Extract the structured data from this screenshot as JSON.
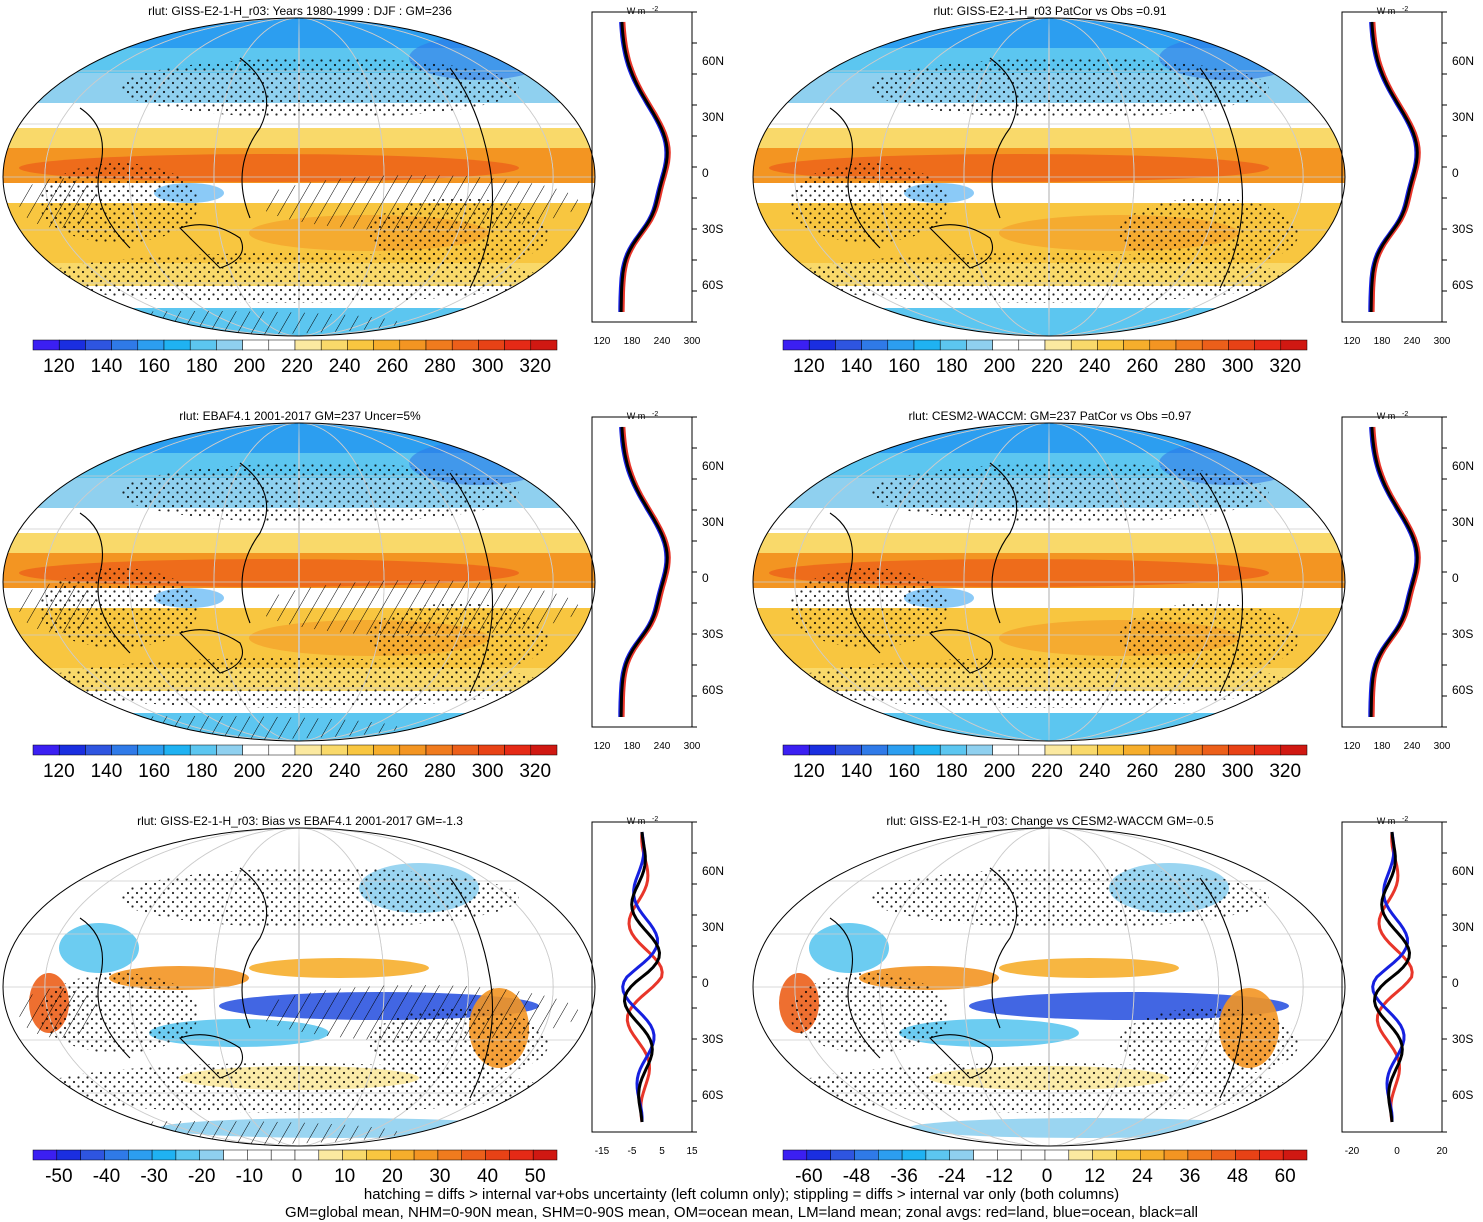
{
  "panels": [
    {
      "id": "p1",
      "title": "rlut: GISS-E2-1-H_r03: Years 1980-1999 : DJF : GM=236",
      "hatching": true,
      "colorbar_labels": [
        "120",
        "140",
        "160",
        "180",
        "200",
        "220",
        "240",
        "260",
        "280",
        "300",
        "320"
      ],
      "zonal_x_labels": [
        "120",
        "180",
        "240",
        "300"
      ],
      "zonal_lat_labels": [
        "60N",
        "30N",
        "0",
        "30S",
        "60S"
      ],
      "zonal_units": "W m",
      "zonal_units_sup": "-2"
    },
    {
      "id": "p2",
      "title": "rlut: GISS-E2-1-H_r03 PatCor vs Obs =0.91",
      "hatching": false,
      "colorbar_labels": [
        "120",
        "140",
        "160",
        "180",
        "200",
        "220",
        "240",
        "260",
        "280",
        "300",
        "320"
      ],
      "zonal_x_labels": [
        "120",
        "180",
        "240",
        "300"
      ],
      "zonal_lat_labels": [
        "60N",
        "30N",
        "0",
        "30S",
        "60S"
      ],
      "zonal_units": "W m",
      "zonal_units_sup": "-2"
    },
    {
      "id": "p3",
      "title": "rlut: EBAF4.1 2001-2017 GM=237 Uncer=5%",
      "hatching": true,
      "colorbar_labels": [
        "120",
        "140",
        "160",
        "180",
        "200",
        "220",
        "240",
        "260",
        "280",
        "300",
        "320"
      ],
      "zonal_x_labels": [
        "120",
        "180",
        "240",
        "300"
      ],
      "zonal_lat_labels": [
        "60N",
        "30N",
        "0",
        "30S",
        "60S"
      ],
      "zonal_units": "W m",
      "zonal_units_sup": "-2"
    },
    {
      "id": "p4",
      "title": "rlut: CESM2-WACCM: GM=237 PatCor vs Obs =0.97",
      "hatching": false,
      "colorbar_labels": [
        "120",
        "140",
        "160",
        "180",
        "200",
        "220",
        "240",
        "260",
        "280",
        "300",
        "320"
      ],
      "zonal_x_labels": [
        "120",
        "180",
        "240",
        "300"
      ],
      "zonal_lat_labels": [
        "60N",
        "30N",
        "0",
        "30S",
        "60S"
      ],
      "zonal_units": "W m",
      "zonal_units_sup": "-2"
    },
    {
      "id": "p5",
      "title": "rlut: GISS-E2-1-H_r03: Bias vs EBAF4.1 2001-2017 GM=-1.3",
      "hatching": true,
      "colorbar_labels": [
        "-50",
        "-40",
        "-30",
        "-20",
        "-10",
        "0",
        "10",
        "20",
        "30",
        "40",
        "50"
      ],
      "zonal_x_labels": [
        "-15",
        "-5",
        "5",
        "15"
      ],
      "zonal_lat_labels": [
        "60N",
        "30N",
        "0",
        "30S",
        "60S"
      ],
      "zonal_units": "W m",
      "zonal_units_sup": "-2"
    },
    {
      "id": "p6",
      "title": "rlut: GISS-E2-1-H_r03: Change vs CESM2-WACCM GM=-0.5",
      "hatching": false,
      "colorbar_labels": [
        "-60",
        "-48",
        "-36",
        "-24",
        "-12",
        "0",
        "12",
        "24",
        "36",
        "48",
        "60"
      ],
      "zonal_x_labels": [
        "-20",
        "0",
        "20"
      ],
      "zonal_lat_labels": [
        "60N",
        "30N",
        "0",
        "30S",
        "60S"
      ],
      "zonal_units": "W m",
      "zonal_units_sup": "-2"
    }
  ],
  "colors": {
    "absolute_palette": [
      "#3b1ff2",
      "#1a2ee0",
      "#2e55e0",
      "#2f7ae8",
      "#2c9ef0",
      "#1fb2f2",
      "#5cc6f0",
      "#8fd0ef",
      "#ffffff",
      "#ffffff",
      "#fbe9a0",
      "#f9d96a",
      "#f8c640",
      "#f6ae2c",
      "#f39522",
      "#f07b1e",
      "#ec5f1a",
      "#e84216",
      "#e52a16",
      "#d01812"
    ],
    "diff_palette": [
      "#3b1ff2",
      "#1a2ee0",
      "#2e55e0",
      "#2f7ae8",
      "#2c9ef0",
      "#1fb2f2",
      "#5cc6f0",
      "#8fd0ef",
      "#ffffff",
      "#ffffff",
      "#ffffff",
      "#ffffff",
      "#fbe9a0",
      "#f9d96a",
      "#f8c640",
      "#f6ae2c",
      "#f39522",
      "#f07b1e",
      "#ec5f1a",
      "#e84216",
      "#e52a16",
      "#d01812"
    ],
    "land": "#e8362a",
    "ocean": "#1620e0",
    "all": "#000000"
  },
  "footer": {
    "line1": "hatching = diffs > internal var+obs uncertainty (left column only); stippling = diffs > internal var only (both columns)",
    "line2": "GM=global mean, NHM=0-90N mean, SHM=0-90S mean, OM=ocean mean, LM=land mean; zonal avgs: red=land, blue=ocean, black=all"
  }
}
